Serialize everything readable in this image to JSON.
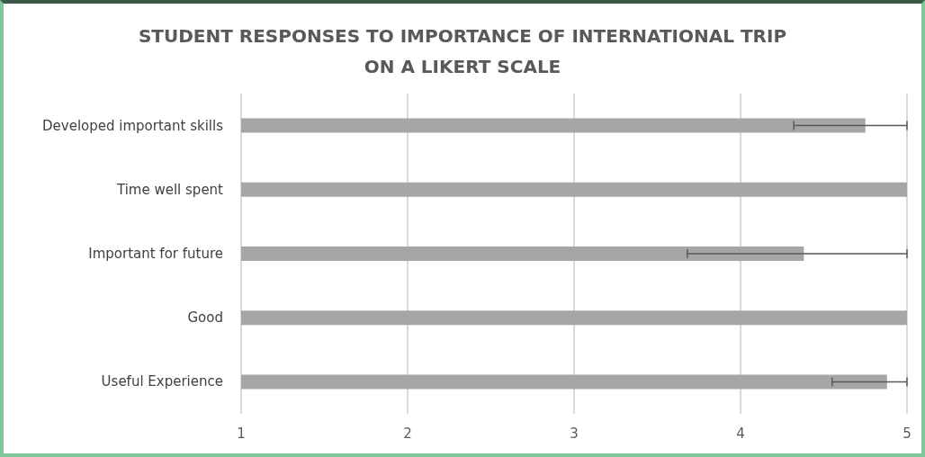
{
  "chart_data": {
    "type": "bar",
    "orientation": "horizontal",
    "title": "STUDENT RESPONSES TO IMPORTANCE OF INTERNATIONAL TRIP\nON A LIKERT SCALE",
    "categories": [
      "Developed important skills",
      "Time well spent",
      "Important for future",
      "Good",
      "Useful Experience"
    ],
    "values": [
      4.75,
      5,
      4.38,
      5,
      4.88
    ],
    "errors": [
      [
        4.32,
        5
      ],
      null,
      [
        3.68,
        5
      ],
      null,
      [
        4.55,
        5
      ]
    ],
    "color": "#a6a6a6",
    "xlim": [
      1,
      5
    ],
    "xticks": [
      1,
      2,
      3,
      4,
      5
    ],
    "grid": "x"
  }
}
